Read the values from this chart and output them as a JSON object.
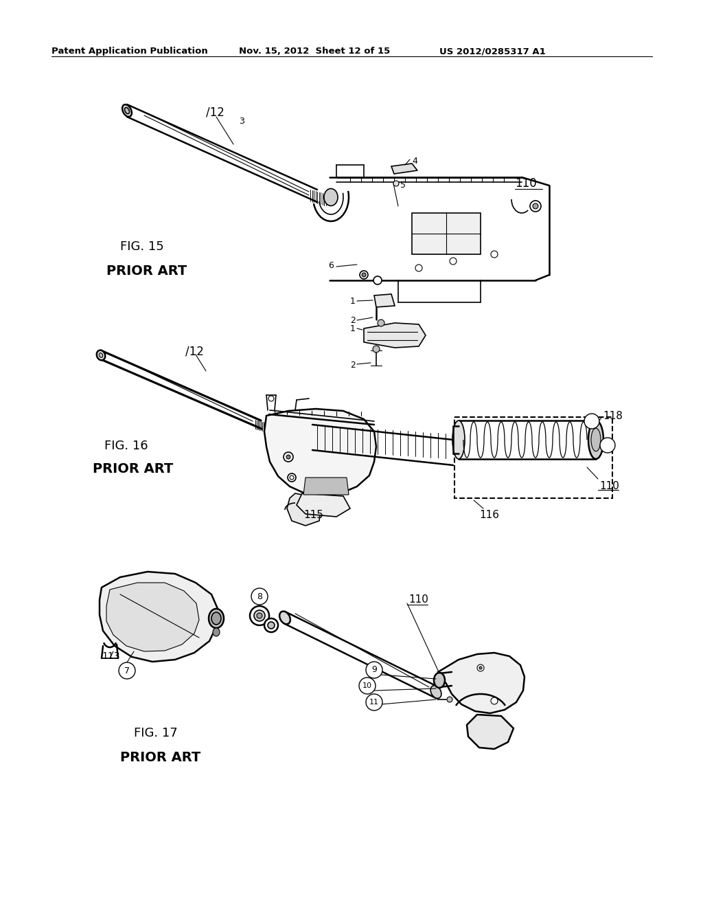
{
  "background_color": "#ffffff",
  "header_left": "Patent Application Publication",
  "header_mid": "Nov. 15, 2012  Sheet 12 of 15",
  "header_right": "US 2012/0285317 A1",
  "fig15_label": "FIG. 15",
  "fig15_prior": "PRIOR ART",
  "fig16_label": "FIG. 16",
  "fig16_prior": "PRIOR ART",
  "fig17_label": "FIG. 17",
  "fig17_prior": "PRIOR ART",
  "fig_width": 10.24,
  "fig_height": 13.2,
  "line_color": "#000000",
  "text_color": "#000000"
}
